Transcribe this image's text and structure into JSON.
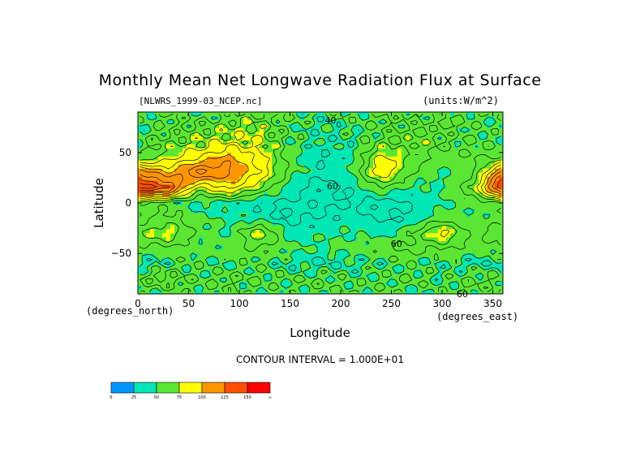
{
  "chart_data": {
    "type": "heatmap",
    "title": "Monthly Mean Net Longwave Radiation Flux at Surface",
    "file_label": "[NLWRS_1999-03_NCEP.nc]",
    "units_label": "(units:W/m^2)",
    "xlabel": "Longitude",
    "ylabel": "Latitude",
    "x_unit_note": "(degrees_east)",
    "y_unit_note": "(degrees_north)",
    "xlim": [
      0,
      360
    ],
    "ylim": [
      -90,
      90
    ],
    "x_ticks": [
      0,
      50,
      100,
      150,
      200,
      250,
      300,
      350
    ],
    "y_ticks": [
      50,
      0,
      -50
    ],
    "contour_interval_text": "CONTOUR INTERVAL = 1.000E+01",
    "contour_labels": [
      {
        "text": "40",
        "lon": 190,
        "lat": 82
      },
      {
        "text": "60",
        "lon": 192,
        "lat": 17
      },
      {
        "text": "60",
        "lon": 255,
        "lat": -40
      },
      {
        "text": "60",
        "lon": 320,
        "lat": -90
      }
    ],
    "legend": {
      "levels": [
        "0",
        "25",
        "50",
        "75",
        "100",
        "125",
        "150",
        "∞"
      ],
      "colors": [
        "#0096ff",
        "#00e6b4",
        "#5ae632",
        "#ffff00",
        "#ff9600",
        "#ff5000",
        "#ff0000"
      ]
    },
    "color_thresholds": [
      0,
      25,
      50,
      75,
      100,
      125,
      150
    ],
    "field": {
      "lon": [
        0,
        30,
        60,
        90,
        120,
        150,
        180,
        210,
        240,
        270,
        300,
        330,
        360
      ],
      "lat": [
        90,
        75,
        60,
        45,
        30,
        15,
        0,
        -15,
        -30,
        -45,
        -60,
        -75,
        -90
      ],
      "values": [
        [
          55,
          60,
          55,
          58,
          60,
          55,
          50,
          52,
          60,
          62,
          55,
          58,
          55
        ],
        [
          50,
          58,
          62,
          70,
          75,
          55,
          45,
          52,
          58,
          60,
          65,
          55,
          50
        ],
        [
          55,
          65,
          72,
          80,
          78,
          55,
          45,
          48,
          62,
          66,
          60,
          58,
          55
        ],
        [
          58,
          75,
          90,
          105,
          85,
          55,
          40,
          45,
          85,
          70,
          55,
          60,
          58
        ],
        [
          120,
          100,
          125,
          115,
          90,
          55,
          42,
          50,
          90,
          60,
          48,
          55,
          120
        ],
        [
          150,
          135,
          75,
          95,
          70,
          45,
          35,
          42,
          60,
          48,
          50,
          70,
          150
        ],
        [
          60,
          55,
          48,
          45,
          40,
          38,
          38,
          40,
          35,
          40,
          48,
          55,
          60
        ],
        [
          55,
          65,
          52,
          48,
          45,
          38,
          40,
          45,
          38,
          42,
          55,
          50,
          55
        ],
        [
          70,
          80,
          55,
          50,
          80,
          45,
          48,
          50,
          45,
          60,
          88,
          55,
          70
        ],
        [
          55,
          58,
          52,
          55,
          60,
          52,
          50,
          55,
          60,
          62,
          60,
          55,
          55
        ],
        [
          45,
          50,
          55,
          50,
          55,
          45,
          40,
          45,
          50,
          55,
          50,
          45,
          45
        ],
        [
          60,
          70,
          55,
          60,
          58,
          55,
          60,
          52,
          55,
          58,
          50,
          60,
          60
        ],
        [
          55,
          50,
          55,
          60,
          55,
          50,
          55,
          60,
          55,
          50,
          55,
          60,
          55
        ]
      ]
    }
  },
  "colors": {
    "background": "#ffffff",
    "axis": "#000000",
    "contour": "#000000"
  }
}
